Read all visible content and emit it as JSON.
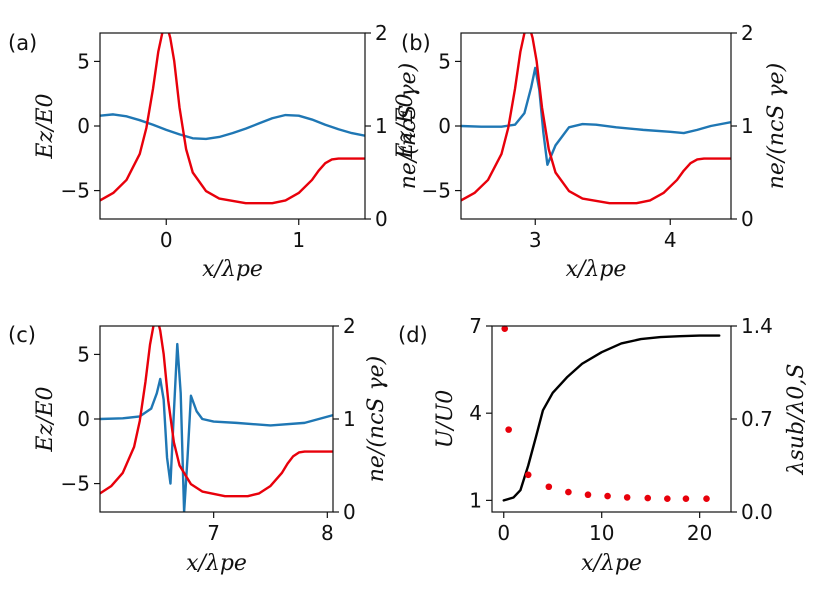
{
  "chart_data": [
    {
      "panel": "(a)",
      "type": "line",
      "xlabel": "x/λpe",
      "ylabel": "Ez/E0",
      "y2label": "ne/(ncS γe)",
      "xlim": [
        -0.5,
        1.5
      ],
      "ylim": [
        -7.2,
        7.2
      ],
      "y2lim": [
        0,
        2
      ],
      "xticks": [
        0,
        1
      ],
      "yticks": [
        -5,
        0,
        5
      ],
      "y2ticks": [
        0,
        1,
        2
      ],
      "series": [
        {
          "name": "Ez",
          "axis": "left",
          "color": "#1f77b4",
          "x": [
            -0.5,
            -0.4,
            -0.3,
            -0.2,
            -0.1,
            0,
            0.1,
            0.2,
            0.3,
            0.4,
            0.5,
            0.6,
            0.7,
            0.8,
            0.9,
            1.0,
            1.1,
            1.2,
            1.3,
            1.4,
            1.5
          ],
          "y": [
            0.8,
            0.9,
            0.75,
            0.45,
            0.1,
            -0.3,
            -0.65,
            -0.95,
            -1.0,
            -0.85,
            -0.55,
            -0.2,
            0.2,
            0.6,
            0.85,
            0.8,
            0.5,
            0.1,
            -0.25,
            -0.55,
            -0.75
          ]
        },
        {
          "name": "ne",
          "axis": "right",
          "color": "#e8000b",
          "x": [
            -0.5,
            -0.4,
            -0.3,
            -0.2,
            -0.15,
            -0.1,
            -0.06,
            -0.03,
            0,
            0.03,
            0.06,
            0.1,
            0.15,
            0.2,
            0.3,
            0.4,
            0.6,
            0.8,
            0.9,
            1.0,
            1.1,
            1.15,
            1.2,
            1.25,
            1.3,
            1.4,
            1.5
          ],
          "y": [
            0.2,
            0.28,
            0.42,
            0.7,
            0.98,
            1.4,
            1.8,
            2.0,
            2.1,
            1.95,
            1.7,
            1.2,
            0.75,
            0.5,
            0.3,
            0.22,
            0.17,
            0.17,
            0.2,
            0.28,
            0.42,
            0.52,
            0.6,
            0.64,
            0.65,
            0.65,
            0.65
          ]
        }
      ]
    },
    {
      "panel": "(b)",
      "type": "line",
      "xlabel": "x/λpe",
      "ylabel": "Ez/E0",
      "y2label": "ne/(ncS γe)",
      "xlim": [
        2.45,
        4.45
      ],
      "ylim": [
        -7.2,
        7.2
      ],
      "y2lim": [
        0,
        2
      ],
      "xticks": [
        3,
        4
      ],
      "yticks": [
        -5,
        0,
        5
      ],
      "y2ticks": [
        0,
        1,
        2
      ],
      "series": [
        {
          "name": "Ez",
          "axis": "left",
          "color": "#1f77b4",
          "x": [
            2.45,
            2.6,
            2.75,
            2.85,
            2.92,
            2.97,
            3.0,
            3.03,
            3.06,
            3.09,
            3.15,
            3.25,
            3.35,
            3.45,
            3.6,
            3.8,
            4.0,
            4.1,
            4.2,
            4.3,
            4.45
          ],
          "y": [
            0.0,
            -0.05,
            -0.05,
            0.1,
            1.0,
            3.0,
            4.5,
            2.8,
            -0.5,
            -3.0,
            -1.5,
            -0.1,
            0.15,
            0.1,
            -0.1,
            -0.3,
            -0.45,
            -0.55,
            -0.3,
            0.0,
            0.3
          ]
        },
        {
          "name": "ne",
          "axis": "right",
          "color": "#e8000b",
          "x": [
            2.45,
            2.55,
            2.65,
            2.75,
            2.8,
            2.85,
            2.89,
            2.92,
            2.95,
            2.98,
            3.01,
            3.05,
            3.1,
            3.15,
            3.25,
            3.35,
            3.55,
            3.75,
            3.85,
            3.95,
            4.05,
            4.1,
            4.15,
            4.2,
            4.25,
            4.35,
            4.45
          ],
          "y": [
            0.2,
            0.28,
            0.42,
            0.7,
            0.98,
            1.4,
            1.8,
            2.0,
            2.1,
            1.95,
            1.7,
            1.2,
            0.75,
            0.5,
            0.3,
            0.22,
            0.17,
            0.17,
            0.2,
            0.28,
            0.42,
            0.52,
            0.6,
            0.64,
            0.65,
            0.65,
            0.65
          ]
        }
      ]
    },
    {
      "panel": "(c)",
      "type": "line",
      "xlabel": "x/λpe",
      "ylabel": "Ez/E0",
      "y2label": "ne/(ncS γe)",
      "xlim": [
        6.0,
        8.05
      ],
      "ylim": [
        -7.2,
        7.2
      ],
      "y2lim": [
        0,
        2
      ],
      "xticks": [
        7,
        8
      ],
      "yticks": [
        -5,
        0,
        5
      ],
      "y2ticks": [
        0,
        1,
        2
      ],
      "series": [
        {
          "name": "Ez",
          "axis": "left",
          "color": "#1f77b4",
          "x": [
            6.0,
            6.2,
            6.35,
            6.45,
            6.5,
            6.53,
            6.56,
            6.59,
            6.62,
            6.65,
            6.68,
            6.71,
            6.74,
            6.77,
            6.8,
            6.85,
            6.9,
            7.0,
            7.2,
            7.5,
            7.8,
            8.05
          ],
          "y": [
            0.0,
            0.05,
            0.2,
            0.8,
            2.0,
            3.1,
            1.5,
            -3.0,
            -5.0,
            0.5,
            5.8,
            2.0,
            -7.2,
            -3.0,
            1.8,
            0.6,
            0.0,
            -0.2,
            -0.3,
            -0.5,
            -0.3,
            0.3
          ]
        },
        {
          "name": "ne",
          "axis": "right",
          "color": "#e8000b",
          "x": [
            6.0,
            6.1,
            6.2,
            6.3,
            6.35,
            6.4,
            6.44,
            6.47,
            6.5,
            6.53,
            6.56,
            6.6,
            6.65,
            6.7,
            6.8,
            6.9,
            7.1,
            7.3,
            7.4,
            7.5,
            7.6,
            7.65,
            7.7,
            7.75,
            7.8,
            7.9,
            8.05
          ],
          "y": [
            0.2,
            0.28,
            0.42,
            0.7,
            0.98,
            1.4,
            1.8,
            2.0,
            2.1,
            1.95,
            1.7,
            1.2,
            0.75,
            0.5,
            0.3,
            0.22,
            0.17,
            0.17,
            0.2,
            0.28,
            0.42,
            0.52,
            0.6,
            0.64,
            0.65,
            0.65,
            0.65
          ]
        }
      ]
    },
    {
      "panel": "(d)",
      "type": "line",
      "xlabel": "x/λpe",
      "ylabel": "U/U0",
      "y2label": "λsub/λ0,S",
      "xlim": [
        -1.2,
        23.2
      ],
      "ylim": [
        0.6,
        7.0
      ],
      "y2lim": [
        0.0,
        1.4
      ],
      "xticks": [
        0,
        10,
        20
      ],
      "yticks": [
        1,
        4,
        7
      ],
      "y2ticks": [
        0.0,
        0.7,
        1.4
      ],
      "y2ticklabels": [
        "0.0",
        "0.7",
        "1.4"
      ],
      "series": [
        {
          "name": "U",
          "axis": "left",
          "color": "#000000",
          "x": [
            0,
            1,
            1.7,
            2.5,
            3.3,
            4.0,
            5.0,
            6.5,
            8.0,
            10.0,
            12.0,
            14.0,
            16.0,
            18.0,
            20.0,
            21.0,
            22.0
          ],
          "y": [
            1.0,
            1.1,
            1.35,
            2.2,
            3.2,
            4.1,
            4.7,
            5.25,
            5.7,
            6.1,
            6.4,
            6.55,
            6.62,
            6.65,
            6.67,
            6.67,
            6.67
          ],
          "style": "line"
        },
        {
          "name": "lambda_sub",
          "axis": "right",
          "color": "#e8000b",
          "x": [
            0.1,
            0.5,
            2.5,
            4.6,
            6.6,
            8.6,
            10.6,
            12.6,
            14.7,
            16.7,
            18.6,
            20.7
          ],
          "y": [
            1.38,
            0.62,
            0.28,
            0.19,
            0.15,
            0.13,
            0.12,
            0.11,
            0.105,
            0.1,
            0.1,
            0.1
          ],
          "style": "markers"
        }
      ]
    }
  ]
}
